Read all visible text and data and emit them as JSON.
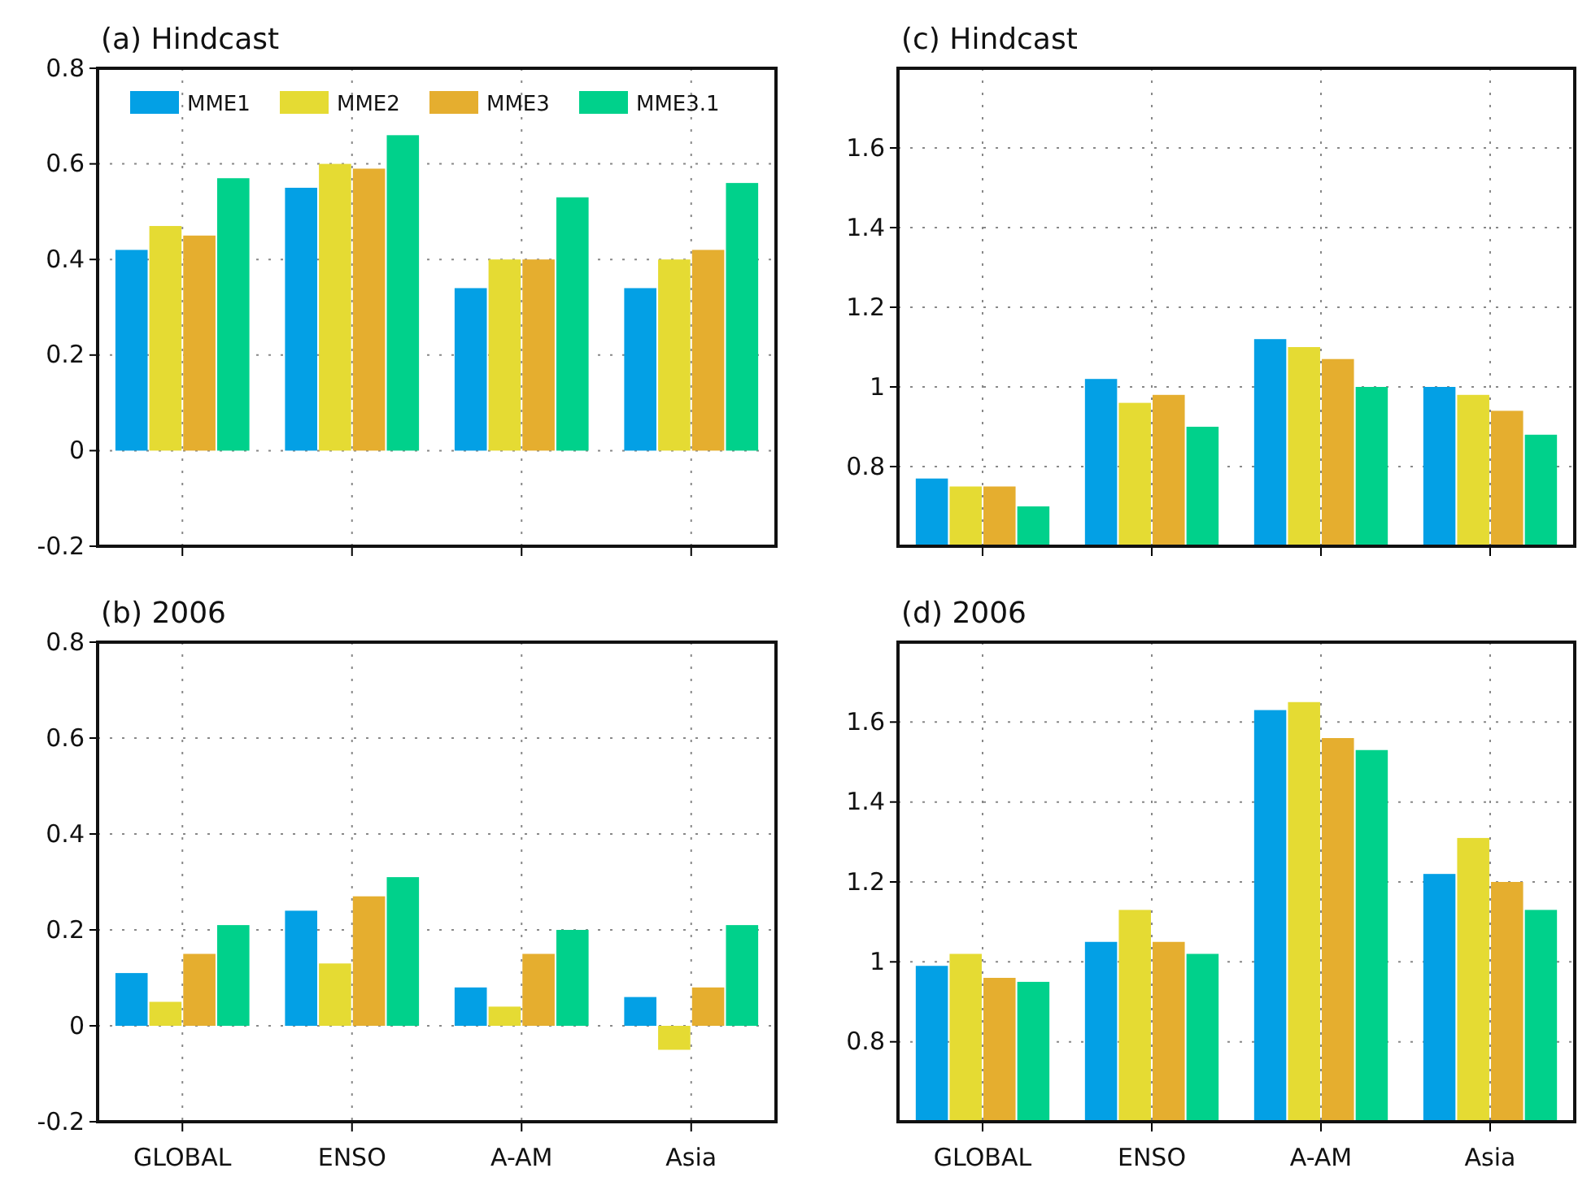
{
  "chart_data": [
    {
      "type": "bar",
      "title": "(a) Hindcast",
      "categories": [
        null,
        null,
        null,
        null
      ],
      "ylim": [
        -0.2,
        0.8
      ],
      "yticks": [
        -0.2,
        0,
        0.2,
        0.4,
        0.6,
        0.8
      ],
      "grid": true,
      "legend": "top left",
      "tick_labels": "y",
      "series": [
        {
          "name": "MME1",
          "color": "#03a0e5",
          "values": [
            0.42,
            0.55,
            0.34,
            0.34
          ]
        },
        {
          "name": "MME2",
          "color": "#e5db33",
          "values": [
            0.47,
            0.6,
            0.4,
            0.4
          ]
        },
        {
          "name": "MME3",
          "color": "#e5ae2f",
          "values": [
            0.45,
            0.59,
            0.4,
            0.42
          ]
        },
        {
          "name": "MME3.1",
          "color": "#00d18b",
          "values": [
            0.57,
            0.66,
            0.53,
            0.56
          ]
        }
      ]
    },
    {
      "type": "bar",
      "title": "(c) Hindcast",
      "categories": [
        null,
        null,
        null,
        null
      ],
      "ylim": [
        0.6,
        1.8
      ],
      "yticks": [
        0.8,
        1.2,
        1.4,
        1.6,
        {
          "value": 1,
          "label": "1"
        }
      ],
      "grid": true,
      "tick_labels": "y",
      "series": [
        {
          "color": "#03a0e5",
          "values": [
            0.77,
            1.02,
            1.12,
            1.0
          ]
        },
        {
          "color": "#e5db33",
          "values": [
            0.75,
            0.96,
            1.1,
            0.98
          ]
        },
        {
          "color": "#e5ae2f",
          "values": [
            0.75,
            0.98,
            1.07,
            0.94
          ]
        },
        {
          "color": "#00d18b",
          "values": [
            0.7,
            0.9,
            1.0,
            0.88
          ]
        }
      ]
    },
    {
      "type": "bar",
      "title": "(b) 2006",
      "categories": [
        "GLOBAL",
        "ENSO",
        "A-AM",
        "Asia"
      ],
      "ylim": [
        -0.2,
        0.8
      ],
      "yticks": [
        -0.2,
        0,
        0.2,
        0.4,
        0.6,
        0.8
      ],
      "grid": true,
      "series": [
        {
          "color": "#03a0e5",
          "values": [
            0.11,
            0.24,
            0.08,
            0.06
          ]
        },
        {
          "color": "#e5db33",
          "values": [
            0.05,
            0.13,
            0.04,
            -0.05
          ]
        },
        {
          "color": "#e5ae2f",
          "values": [
            0.15,
            0.27,
            0.15,
            0.08
          ]
        },
        {
          "color": "#00d18b",
          "values": [
            0.21,
            0.31,
            0.2,
            0.21
          ]
        }
      ]
    },
    {
      "type": "bar",
      "title": "(d) 2006",
      "categories": [
        "GLOBAL",
        "ENSO",
        "A-AM",
        "Asia"
      ],
      "ylim": [
        0.6,
        1.8
      ],
      "yticks": [
        0.8,
        1.2,
        1.4,
        1.6,
        {
          "value": 1,
          "label": "1"
        }
      ],
      "grid": true,
      "series": [
        {
          "color": "#03a0e5",
          "values": [
            0.99,
            1.05,
            1.63,
            1.22
          ]
        },
        {
          "color": "#e5db33",
          "values": [
            1.02,
            1.13,
            1.65,
            1.31
          ]
        },
        {
          "color": "#e5ae2f",
          "values": [
            0.96,
            1.05,
            1.56,
            1.2
          ]
        },
        {
          "color": "#00d18b",
          "values": [
            0.95,
            1.02,
            1.53,
            1.13
          ]
        }
      ]
    }
  ]
}
